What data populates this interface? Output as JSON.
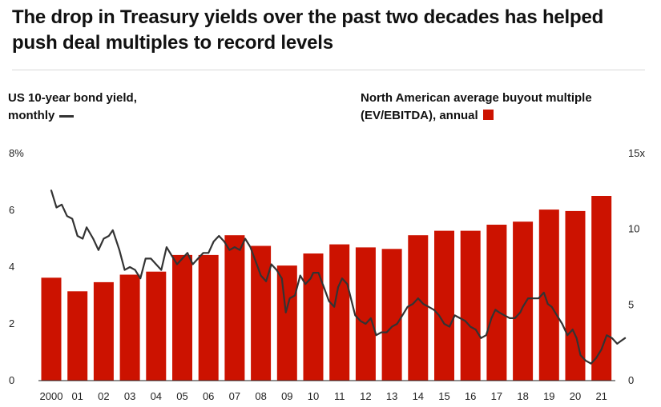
{
  "title_line1": "The drop in Treasury yields over the past two decades has helped",
  "title_line2": "push deal multiples to record levels",
  "legend_left": {
    "line1": "US 10-year bond yield,",
    "line2": "monthly"
  },
  "legend_right": {
    "line1": "North American average buyout multiple",
    "line2": "(EV/EBITDA), annual"
  },
  "colors": {
    "bar": "#cc1200",
    "line": "#333333"
  },
  "chart_data": {
    "type": "bar+line",
    "categories": [
      "2000",
      "01",
      "02",
      "03",
      "04",
      "05",
      "06",
      "07",
      "08",
      "09",
      "10",
      "11",
      "12",
      "13",
      "14",
      "15",
      "16",
      "17",
      "18",
      "19",
      "20",
      "21"
    ],
    "y_left": {
      "ticks": [
        "8%",
        "6",
        "4",
        "2",
        "0"
      ],
      "range": [
        0,
        8
      ]
    },
    "y_right": {
      "ticks": [
        "15x",
        "10",
        "5",
        "0"
      ],
      "range": [
        0,
        15
      ]
    },
    "series": [
      {
        "name": "North American average buyout multiple (EV/EBITDA), annual",
        "type": "bar",
        "axis": "right",
        "values": [
          6.8,
          5.9,
          6.5,
          7.0,
          7.2,
          8.3,
          8.3,
          9.6,
          8.9,
          7.6,
          8.4,
          9.0,
          8.8,
          8.7,
          9.6,
          9.9,
          9.9,
          10.3,
          10.5,
          11.3,
          11.2,
          12.2
        ]
      },
      {
        "name": "US 10-year bond yield, monthly",
        "type": "line",
        "axis": "left",
        "points": [
          [
            2000.0,
            6.7
          ],
          [
            2000.2,
            6.1
          ],
          [
            2000.4,
            6.2
          ],
          [
            2000.6,
            5.8
          ],
          [
            2000.8,
            5.7
          ],
          [
            2001.0,
            5.1
          ],
          [
            2001.2,
            5.0
          ],
          [
            2001.35,
            5.4
          ],
          [
            2001.6,
            5.0
          ],
          [
            2001.8,
            4.6
          ],
          [
            2002.0,
            5.0
          ],
          [
            2002.2,
            5.1
          ],
          [
            2002.35,
            5.3
          ],
          [
            2002.6,
            4.6
          ],
          [
            2002.8,
            3.9
          ],
          [
            2003.0,
            4.0
          ],
          [
            2003.2,
            3.9
          ],
          [
            2003.4,
            3.6
          ],
          [
            2003.6,
            4.3
          ],
          [
            2003.8,
            4.3
          ],
          [
            2004.0,
            4.1
          ],
          [
            2004.2,
            3.9
          ],
          [
            2004.4,
            4.7
          ],
          [
            2004.6,
            4.4
          ],
          [
            2004.8,
            4.1
          ],
          [
            2005.0,
            4.3
          ],
          [
            2005.2,
            4.5
          ],
          [
            2005.4,
            4.1
          ],
          [
            2005.6,
            4.3
          ],
          [
            2005.8,
            4.5
          ],
          [
            2006.0,
            4.5
          ],
          [
            2006.2,
            4.9
          ],
          [
            2006.4,
            5.1
          ],
          [
            2006.6,
            4.9
          ],
          [
            2006.8,
            4.6
          ],
          [
            2007.0,
            4.7
          ],
          [
            2007.2,
            4.6
          ],
          [
            2007.4,
            5.0
          ],
          [
            2007.6,
            4.7
          ],
          [
            2007.8,
            4.2
          ],
          [
            2008.0,
            3.7
          ],
          [
            2008.2,
            3.5
          ],
          [
            2008.4,
            4.1
          ],
          [
            2008.6,
            3.9
          ],
          [
            2008.8,
            3.6
          ],
          [
            2008.95,
            2.4
          ],
          [
            2009.1,
            2.9
          ],
          [
            2009.3,
            3.0
          ],
          [
            2009.5,
            3.7
          ],
          [
            2009.7,
            3.4
          ],
          [
            2009.9,
            3.6
          ],
          [
            2010.0,
            3.8
          ],
          [
            2010.2,
            3.8
          ],
          [
            2010.4,
            3.3
          ],
          [
            2010.6,
            2.8
          ],
          [
            2010.8,
            2.6
          ],
          [
            2010.95,
            3.3
          ],
          [
            2011.1,
            3.6
          ],
          [
            2011.3,
            3.4
          ],
          [
            2011.6,
            2.3
          ],
          [
            2011.8,
            2.1
          ],
          [
            2012.0,
            2.0
          ],
          [
            2012.2,
            2.2
          ],
          [
            2012.4,
            1.6
          ],
          [
            2012.6,
            1.7
          ],
          [
            2012.8,
            1.7
          ],
          [
            2013.0,
            1.9
          ],
          [
            2013.2,
            2.0
          ],
          [
            2013.4,
            2.3
          ],
          [
            2013.6,
            2.6
          ],
          [
            2013.8,
            2.7
          ],
          [
            2014.0,
            2.9
          ],
          [
            2014.2,
            2.7
          ],
          [
            2014.4,
            2.6
          ],
          [
            2014.6,
            2.5
          ],
          [
            2014.8,
            2.3
          ],
          [
            2015.0,
            2.0
          ],
          [
            2015.2,
            1.9
          ],
          [
            2015.4,
            2.3
          ],
          [
            2015.6,
            2.2
          ],
          [
            2015.8,
            2.1
          ],
          [
            2016.0,
            1.9
          ],
          [
            2016.2,
            1.8
          ],
          [
            2016.4,
            1.5
          ],
          [
            2016.6,
            1.6
          ],
          [
            2016.8,
            2.2
          ],
          [
            2016.95,
            2.5
          ],
          [
            2017.1,
            2.4
          ],
          [
            2017.3,
            2.3
          ],
          [
            2017.5,
            2.2
          ],
          [
            2017.7,
            2.2
          ],
          [
            2017.9,
            2.4
          ],
          [
            2018.0,
            2.6
          ],
          [
            2018.2,
            2.9
          ],
          [
            2018.4,
            2.9
          ],
          [
            2018.6,
            2.9
          ],
          [
            2018.8,
            3.1
          ],
          [
            2018.95,
            2.7
          ],
          [
            2019.1,
            2.6
          ],
          [
            2019.3,
            2.3
          ],
          [
            2019.5,
            2.0
          ],
          [
            2019.7,
            1.6
          ],
          [
            2019.9,
            1.8
          ],
          [
            2020.05,
            1.5
          ],
          [
            2020.2,
            0.9
          ],
          [
            2020.4,
            0.7
          ],
          [
            2020.6,
            0.6
          ],
          [
            2020.8,
            0.8
          ],
          [
            2021.0,
            1.1
          ],
          [
            2021.2,
            1.6
          ],
          [
            2021.4,
            1.5
          ],
          [
            2021.6,
            1.3
          ],
          [
            2021.75,
            1.4
          ],
          [
            2021.9,
            1.5
          ]
        ]
      }
    ]
  }
}
